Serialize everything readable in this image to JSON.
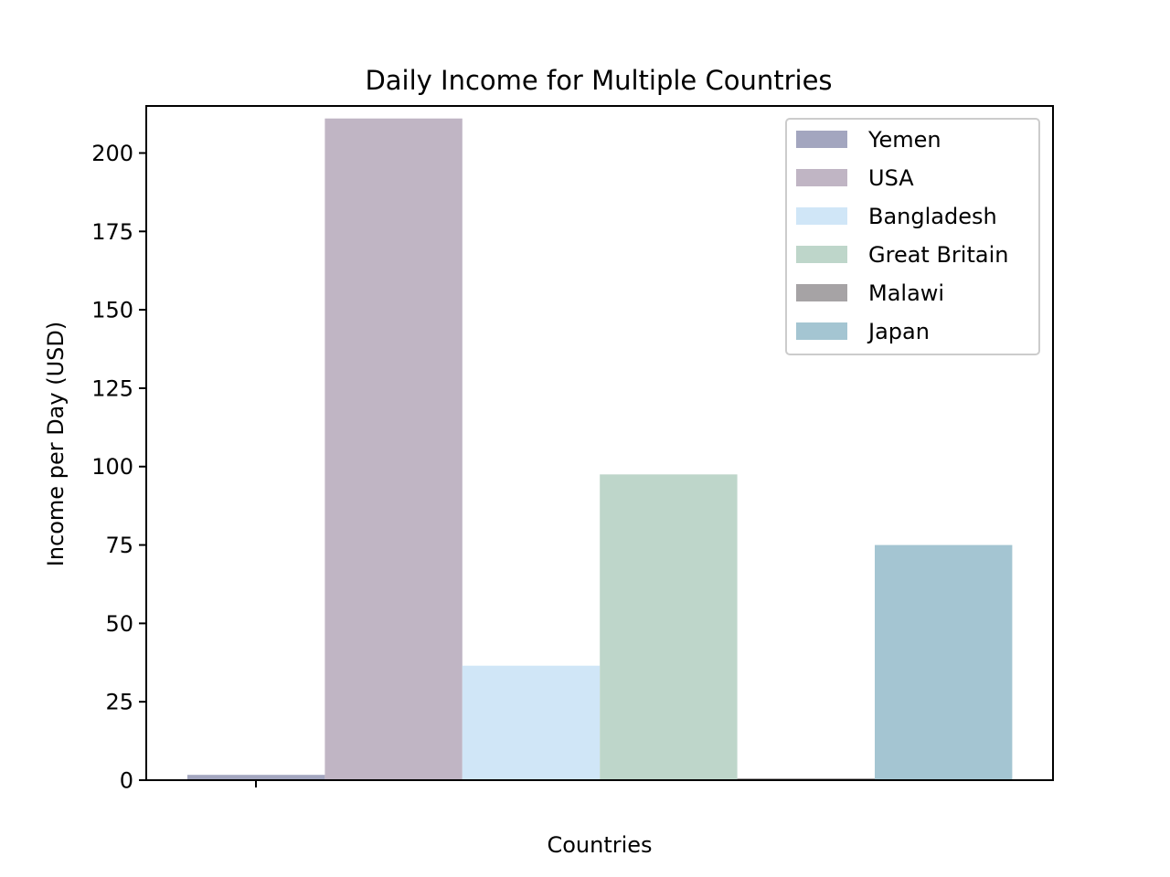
{
  "chart_data": {
    "type": "bar",
    "title": "Daily Income for Multiple Countries",
    "xlabel": "Countries",
    "ylabel": "Income per Day (USD)",
    "ylim": [
      0,
      215
    ],
    "yticks": [
      0,
      25,
      50,
      75,
      100,
      125,
      150,
      175,
      200
    ],
    "xticks": [
      ""
    ],
    "grid": false,
    "legend_position": "top-right",
    "series": [
      {
        "name": "Yemen",
        "value": 1.7,
        "color": "#a3a6bf"
      },
      {
        "name": "USA",
        "value": 211,
        "color": "#c0b5c4"
      },
      {
        "name": "Bangladesh",
        "value": 36.5,
        "color": "#d0e6f7"
      },
      {
        "name": "Great Britain",
        "value": 97.5,
        "color": "#bed6ca"
      },
      {
        "name": "Malawi",
        "value": 0.6,
        "color": "#a6a3a5"
      },
      {
        "name": "Japan",
        "value": 75,
        "color": "#a4c5d2"
      }
    ]
  }
}
